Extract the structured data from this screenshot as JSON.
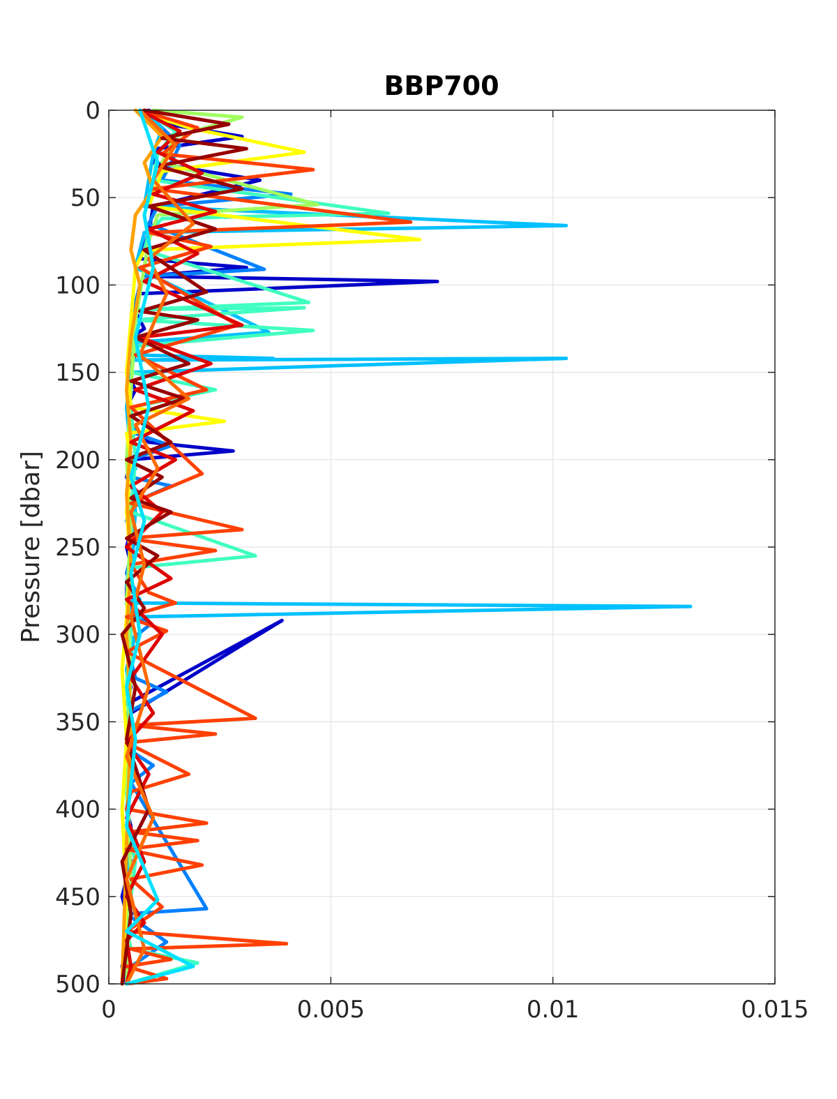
{
  "chart_data": {
    "type": "line",
    "title": "BBP700",
    "xlabel": "",
    "ylabel": "Pressure [dbar]",
    "xlim": [
      0,
      0.015
    ],
    "ylim": [
      0,
      500
    ],
    "y_reversed": true,
    "grid": true,
    "legend": "none",
    "x_ticks": [
      "0",
      "0.005",
      "0.01",
      "0.015"
    ],
    "y_ticks": [
      "0",
      "50",
      "100",
      "150",
      "200",
      "250",
      "300",
      "350",
      "400",
      "450",
      "500"
    ],
    "series": [
      {
        "color": "#0000c8",
        "x": [
          0.0009,
          0.0013,
          0.003,
          0.0011,
          0.001,
          0.0034,
          0.001,
          0.0009,
          0.0007,
          0.0031,
          0.0008,
          0.0074,
          0.0007,
          0.0006,
          0.0008,
          0.0005,
          0.0006,
          0.0005,
          0.0004,
          0.0006,
          0.0004,
          0.0005,
          0.0009,
          0.0028,
          0.0005,
          0.0004,
          0.0006,
          0.0004,
          0.0005,
          0.0004,
          0.0005,
          0.0004,
          0.0004,
          0.0005,
          0.0004,
          0.0005,
          0.0004,
          0.0005,
          0.0004,
          0.0005,
          0.0004,
          0.0039,
          0.0005,
          0.0004,
          0.0005,
          0.0004,
          0.0005,
          0.0004,
          0.0005,
          0.0004,
          0.0005,
          0.0004,
          0.0005,
          0.0004,
          0.0003,
          0.0004,
          0.0005,
          0.0004,
          0.0003,
          0.0004
        ],
        "y": [
          0,
          8,
          15,
          22,
          30,
          40,
          55,
          70,
          85,
          90,
          95,
          98,
          105,
          115,
          125,
          130,
          140,
          145,
          150,
          160,
          170,
          180,
          190,
          195,
          200,
          210,
          220,
          230,
          240,
          250,
          260,
          270,
          280,
          285,
          289,
          292,
          300,
          310,
          320,
          330,
          340,
          292,
          345,
          350,
          360,
          365,
          370,
          380,
          390,
          400,
          410,
          420,
          430,
          440,
          450,
          460,
          470,
          480,
          490,
          500
        ]
      },
      {
        "color": "#0080ff",
        "x": [
          0.0008,
          0.0012,
          0.0016,
          0.0014,
          0.0012,
          0.0041,
          0.0011,
          0.0009,
          0.0035,
          0.0008,
          0.0007,
          0.0006,
          0.0005,
          0.0006,
          0.0005,
          0.0005,
          0.0004,
          0.0006,
          0.0014,
          0.0005,
          0.0006,
          0.0005,
          0.0014,
          0.0005,
          0.0004,
          0.0006,
          0.0005,
          0.0004,
          0.0006,
          0.0005,
          0.0009,
          0.0004,
          0.0005,
          0.0006,
          0.0013,
          0.0004,
          0.0005,
          0.0004,
          0.001,
          0.0005,
          0.0022,
          0.0004,
          0.0013,
          0.0005,
          0.0004
        ],
        "y": [
          0,
          10,
          20,
          30,
          40,
          48,
          55,
          65,
          91,
          95,
          100,
          110,
          120,
          135,
          150,
          160,
          170,
          185,
          192,
          200,
          205,
          210,
          215,
          225,
          235,
          245,
          255,
          265,
          275,
          285,
          295,
          305,
          315,
          325,
          333,
          345,
          355,
          365,
          375,
          385,
          457,
          460,
          476,
          490,
          500
        ]
      },
      {
        "color": "#00c0ff",
        "x": [
          0.0008,
          0.0012,
          0.001,
          0.0009,
          0.0008,
          0.0103,
          0.0008,
          0.0007,
          0.0006,
          0.0036,
          0.0005,
          0.0006,
          0.0005,
          0.0037,
          0.0005,
          0.0103,
          0.0005,
          0.0004,
          0.0005,
          0.0006,
          0.0005,
          0.0004,
          0.0005,
          0.0007,
          0.0004,
          0.0131,
          0.0005,
          0.0006,
          0.0004,
          0.0005,
          0.0004,
          0.0005,
          0.0004,
          0.0005,
          0.0004,
          0.0005,
          0.0004,
          0.0005,
          0.0004
        ],
        "y": [
          0,
          10,
          25,
          40,
          55,
          66,
          70,
          80,
          90,
          127,
          133,
          138,
          140,
          142,
          143,
          142,
          150,
          170,
          200,
          230,
          260,
          270,
          275,
          280,
          282,
          284,
          290,
          300,
          320,
          340,
          360,
          380,
          400,
          420,
          440,
          460,
          475,
          490,
          500
        ]
      },
      {
        "color": "#40ffc0",
        "x": [
          0.0008,
          0.0015,
          0.0011,
          0.001,
          0.0063,
          0.0012,
          0.0009,
          0.0008,
          0.0045,
          0.0007,
          0.0044,
          0.0006,
          0.0046,
          0.0006,
          0.0005,
          0.0024,
          0.0005,
          0.0006,
          0.0005,
          0.0033,
          0.0005,
          0.0004,
          0.0005,
          0.0004,
          0.0005,
          0.0004,
          0.0005,
          0.0006,
          0.0005,
          0.0004,
          0.0005,
          0.002,
          0.0004
        ],
        "y": [
          0,
          12,
          25,
          40,
          59,
          62,
          70,
          80,
          110,
          114,
          113,
          120,
          126,
          135,
          150,
          160,
          170,
          200,
          230,
          255,
          262,
          270,
          300,
          330,
          360,
          390,
          420,
          430,
          450,
          470,
          480,
          488,
          500
        ]
      },
      {
        "color": "#a0ff60",
        "x": [
          0.001,
          0.003,
          0.0015,
          0.0012,
          0.0047,
          0.0011,
          0.0009,
          0.0008,
          0.0006,
          0.0005,
          0.0004,
          0.0005,
          0.0004,
          0.0005,
          0.0004,
          0.0005,
          0.0004
        ],
        "y": [
          0,
          4,
          15,
          30,
          54,
          60,
          75,
          90,
          120,
          160,
          200,
          240,
          280,
          320,
          380,
          440,
          500
        ]
      },
      {
        "color": "#ffff00",
        "x": [
          0.0006,
          0.0018,
          0.0044,
          0.0012,
          0.0009,
          0.007,
          0.0008,
          0.0006,
          0.0005,
          0.0004,
          0.0005,
          0.0026,
          0.0004,
          0.0005,
          0.0004,
          0.0005,
          0.0004,
          0.0003,
          0.0004,
          0.0003,
          0.0004,
          0.0003
        ],
        "y": [
          0,
          10,
          24,
          35,
          55,
          74,
          80,
          90,
          120,
          150,
          170,
          178,
          185,
          200,
          230,
          260,
          290,
          320,
          360,
          400,
          450,
          500
        ]
      },
      {
        "color": "#ffa000",
        "x": [
          0.0006,
          0.0012,
          0.0008,
          0.001,
          0.0006,
          0.0005,
          0.0007,
          0.0005,
          0.0004,
          0.0005,
          0.0004,
          0.0005,
          0.0004,
          0.0005,
          0.0004,
          0.0003
        ],
        "y": [
          0,
          15,
          30,
          45,
          60,
          80,
          100,
          130,
          160,
          190,
          220,
          260,
          300,
          350,
          420,
          500
        ]
      },
      {
        "color": "#ff4000",
        "x": [
          0.0007,
          0.002,
          0.0012,
          0.0046,
          0.001,
          0.0068,
          0.0009,
          0.0023,
          0.0007,
          0.0029,
          0.0006,
          0.0022,
          0.0005,
          0.0021,
          0.0005,
          0.003,
          0.0004,
          0.0024,
          0.0005,
          0.0009,
          0.0015,
          0.0004,
          0.0013,
          0.0004,
          0.0033,
          0.0005,
          0.0024,
          0.0004,
          0.0018,
          0.0005,
          0.0004,
          0.0022,
          0.0005,
          0.002,
          0.0004,
          0.0021,
          0.0005,
          0.0012,
          0.0004,
          0.004,
          0.0005,
          0.0014,
          0.0004,
          0.0013,
          0.0004
        ],
        "y": [
          0,
          10,
          25,
          34,
          45,
          64,
          70,
          78,
          90,
          123,
          140,
          160,
          170,
          208,
          225,
          240,
          245,
          252,
          260,
          276,
          282,
          290,
          298,
          310,
          348,
          352,
          357,
          362,
          380,
          390,
          400,
          408,
          413,
          418,
          423,
          432,
          440,
          456,
          470,
          477,
          480,
          486,
          490,
          497,
          500
        ]
      },
      {
        "color": "#dd0000",
        "x": [
          0.0007,
          0.0016,
          0.0011,
          0.0021,
          0.001,
          0.0024,
          0.0009,
          0.002,
          0.0008,
          0.003,
          0.0007,
          0.0023,
          0.0006,
          0.0019,
          0.0005,
          0.0015,
          0.0005,
          0.0012,
          0.0004,
          0.0014,
          0.0004,
          0.0012,
          0.0005,
          0.001,
          0.0004,
          0.0009,
          0.0004,
          0.0008,
          0.0004,
          0.0008,
          0.0004,
          0.0005,
          0.0004
        ],
        "y": [
          0,
          12,
          24,
          36,
          48,
          58,
          68,
          82,
          98,
          123,
          130,
          145,
          160,
          172,
          190,
          200,
          215,
          230,
          250,
          268,
          280,
          300,
          325,
          345,
          362,
          380,
          405,
          430,
          450,
          465,
          475,
          490,
          500
        ]
      },
      {
        "color": "#960000",
        "x": [
          0.0008,
          0.0027,
          0.0012,
          0.0031,
          0.0011,
          0.003,
          0.0009,
          0.0024,
          0.0008,
          0.0022,
          0.0007,
          0.002,
          0.0006,
          0.0018,
          0.0005,
          0.0017,
          0.0005,
          0.0014,
          0.0004,
          0.0012,
          0.0005,
          0.0014,
          0.0004,
          0.0011,
          0.0004,
          0.0008,
          0.0003,
          0.0006,
          0.0004,
          0.0009,
          0.0003,
          0.0005,
          0.0003
        ],
        "y": [
          0,
          8,
          16,
          22,
          32,
          45,
          55,
          68,
          80,
          104,
          115,
          120,
          130,
          145,
          155,
          165,
          175,
          190,
          200,
          210,
          222,
          230,
          245,
          255,
          270,
          285,
          300,
          330,
          360,
          400,
          430,
          460,
          500
        ]
      },
      {
        "color": "#ff6a00",
        "x": [
          0.0007,
          0.0015,
          0.001,
          0.0019,
          0.0009,
          0.0013,
          0.0007,
          0.0018,
          0.0006,
          0.0011,
          0.0005,
          0.0008,
          0.0005,
          0.0009,
          0.0004,
          0.001,
          0.0004,
          0.0008,
          0.0004
        ],
        "y": [
          0,
          20,
          40,
          65,
          85,
          105,
          140,
          165,
          180,
          205,
          230,
          260,
          290,
          330,
          370,
          405,
          440,
          480,
          500
        ]
      },
      {
        "color": "#00e0ff",
        "x": [
          0.0007,
          0.0011,
          0.0008,
          0.001,
          0.0006,
          0.0009,
          0.0005,
          0.0008,
          0.0005,
          0.0007,
          0.0004,
          0.0006,
          0.0004,
          0.0011,
          0.0004,
          0.0019,
          0.0004
        ],
        "y": [
          0,
          30,
          60,
          90,
          130,
          170,
          210,
          235,
          265,
          300,
          330,
          360,
          410,
          452,
          470,
          490,
          500
        ]
      }
    ]
  }
}
